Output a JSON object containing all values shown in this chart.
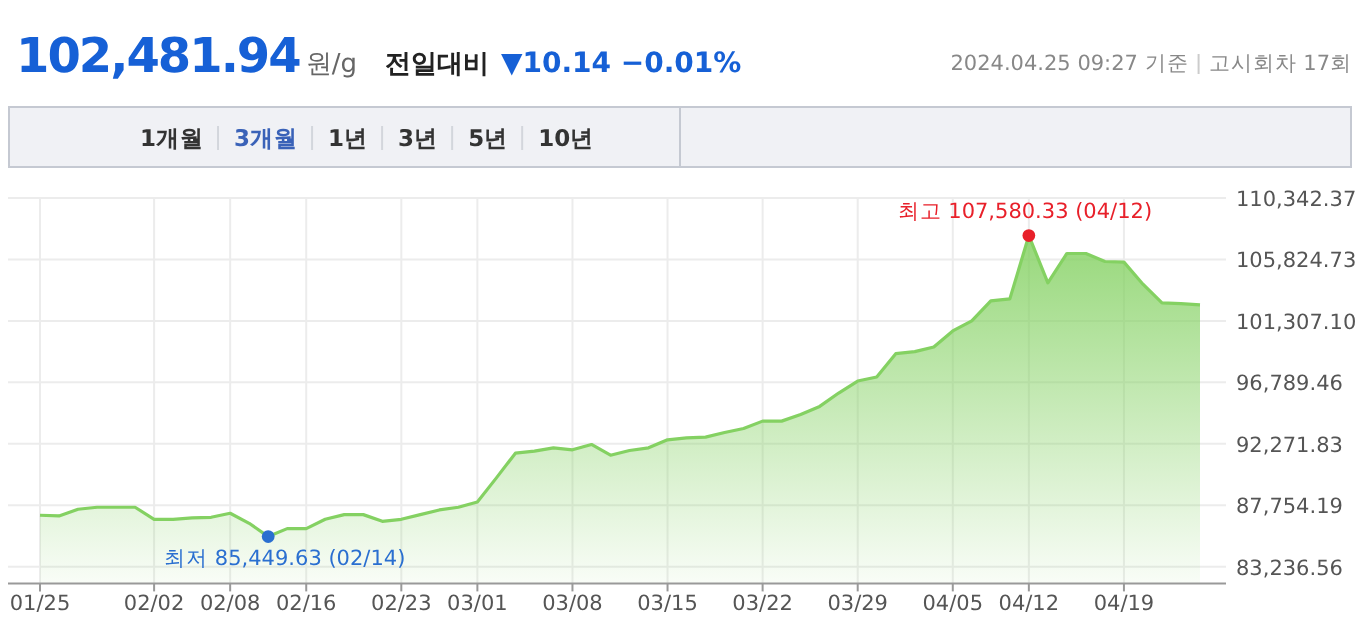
{
  "chart_data": {
    "type": "area",
    "title": "102,481.94",
    "subtitle": "원/g",
    "annotations": [
      "전일대비",
      "▼10.14 −0.01%",
      "2024.04.25 09:27 기준",
      "고시회차 17회",
      "1개월",
      "3개월",
      "1년",
      "3년",
      "5년",
      "10년",
      {
        "text": "최고 107,580.33 (04/12)",
        "x": "04/12",
        "y": 107580.33
      },
      {
        "text": "최저 85,449.63 (02/14)",
        "y": 85449.63
      }
    ],
    "categories": [
      "01/25",
      null,
      null,
      null,
      null,
      null,
      "02/02",
      null,
      null,
      null,
      "02/08",
      null,
      null,
      null,
      "02/16",
      null,
      null,
      null,
      null,
      "02/23",
      null,
      null,
      null,
      "03/01",
      null,
      null,
      null,
      null,
      "03/08",
      null,
      null,
      null,
      null,
      "03/15",
      null,
      null,
      null,
      null,
      "03/22",
      null,
      null,
      null,
      null,
      "03/29",
      null,
      null,
      null,
      null,
      "04/05",
      null,
      null,
      null,
      "04/12",
      null,
      null,
      null,
      null,
      "04/19",
      null,
      null,
      null,
      null
    ],
    "values": [
      87018,
      86968,
      87459,
      87606,
      87606,
      87606,
      86722,
      86722,
      86821,
      86870,
      87165,
      86428,
      85449.63,
      86035,
      86035,
      86722,
      87066,
      87066,
      86575,
      86722,
      87066,
      87410,
      87606,
      87999,
      89767,
      91584,
      91731,
      91976,
      91829,
      92222,
      91436,
      91780,
      91976,
      92566,
      92713,
      92762,
      93106,
      93400,
      93940,
      93940,
      94431,
      95020,
      96002,
      96886,
      97180,
      98899,
      99047,
      99390,
      100569,
      101305,
      102778,
      102925,
      107580.33,
      104104,
      106264,
      106264,
      105675,
      105626,
      104005,
      102631,
      102582,
      102482
    ],
    "color": "#84d162",
    "ylim": [
      82009,
      110342.37
    ],
    "yticks": [
      {
        "value": 83236.56,
        "label": "83,236.56"
      },
      {
        "value": 87754.19,
        "label": "87,754.19"
      },
      {
        "value": 92271.83,
        "label": "92,271.83"
      },
      {
        "value": 96789.46,
        "label": "96,789.46"
      },
      {
        "value": 101307.1,
        "label": "101,307.10"
      },
      {
        "value": 105824.73,
        "label": "105,824.73"
      },
      {
        "value": 110342.37,
        "label": "110,342.37"
      }
    ],
    "grid": true
  }
}
